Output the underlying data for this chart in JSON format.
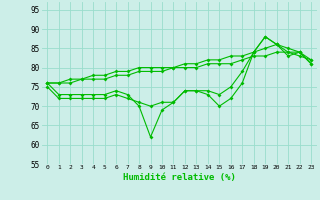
{
  "xlabel": "Humidité relative (%)",
  "bg_color": "#cceee8",
  "grid_color": "#99ddcc",
  "line_color": "#00bb00",
  "xlim": [
    -0.5,
    23.5
  ],
  "ylim": [
    55,
    97
  ],
  "yticks": [
    55,
    60,
    65,
    70,
    75,
    80,
    85,
    90,
    95
  ],
  "xticks": [
    0,
    1,
    2,
    3,
    4,
    5,
    6,
    7,
    8,
    9,
    10,
    11,
    12,
    13,
    14,
    15,
    16,
    17,
    18,
    19,
    20,
    21,
    22,
    23
  ],
  "series": [
    [
      76,
      73,
      73,
      73,
      73,
      73,
      74,
      73,
      70,
      62,
      69,
      71,
      74,
      74,
      74,
      73,
      75,
      79,
      84,
      88,
      86,
      84,
      84,
      81
    ],
    [
      75,
      72,
      72,
      72,
      72,
      72,
      73,
      72,
      71,
      70,
      71,
      71,
      74,
      74,
      73,
      70,
      72,
      76,
      84,
      88,
      86,
      83,
      84,
      81
    ],
    [
      76,
      76,
      76,
      77,
      77,
      77,
      78,
      78,
      79,
      79,
      79,
      80,
      80,
      80,
      81,
      81,
      81,
      82,
      83,
      83,
      84,
      84,
      83,
      82
    ],
    [
      76,
      76,
      77,
      77,
      78,
      78,
      79,
      79,
      80,
      80,
      80,
      80,
      81,
      81,
      82,
      82,
      83,
      83,
      84,
      85,
      86,
      85,
      84,
      82
    ]
  ]
}
